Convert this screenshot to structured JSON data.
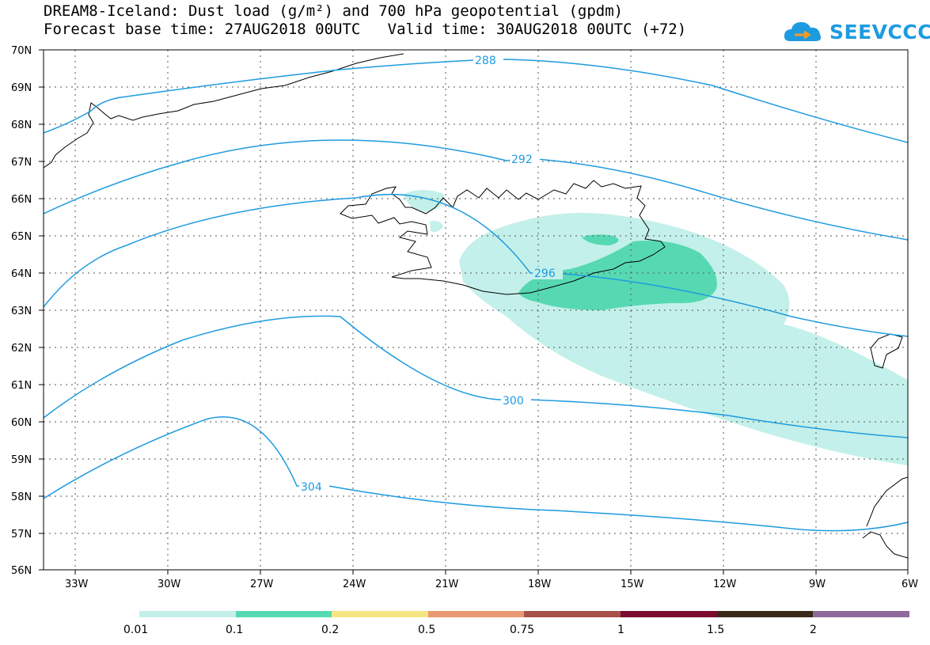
{
  "title": {
    "line1": "DREAM8-Iceland: Dust load (g/m²) and 700 hPa geopotential (gpdm)",
    "line2": "Forecast base time: 27AUG2018 00UTC   Valid time: 30AUG2018 00UTC (+72)"
  },
  "logo": {
    "text": "SEEVCCC",
    "color": "#1e9be0",
    "icon": "cloud-icon"
  },
  "map": {
    "lon_range": [
      -34.5,
      -6
    ],
    "lat_range": [
      56,
      70
    ],
    "lat_labels": [
      "70N",
      "69N",
      "68N",
      "67N",
      "66N",
      "65N",
      "64N",
      "63N",
      "62N",
      "61N",
      "60N",
      "59N",
      "58N",
      "57N",
      "56N"
    ],
    "lon_labels": [
      "33W",
      "30W",
      "27W",
      "24W",
      "21W",
      "18W",
      "15W",
      "12W",
      "9W",
      "6W"
    ],
    "contour_color": "#1e9be0",
    "contours": [
      {
        "label": "288"
      },
      {
        "label": "292"
      },
      {
        "label": "296"
      },
      {
        "label": "300"
      },
      {
        "label": "304"
      }
    ]
  },
  "colorbar": {
    "labels": [
      "0.01",
      "0.1",
      "0.2",
      "0.5",
      "0.75",
      "1",
      "1.5",
      "2"
    ],
    "colors": [
      "#c3f0ea",
      "#56d9b2",
      "#f5e682",
      "#e89a72",
      "#a8504a",
      "#7a0b2e",
      "#3a2818",
      "#8f6a9a"
    ]
  }
}
